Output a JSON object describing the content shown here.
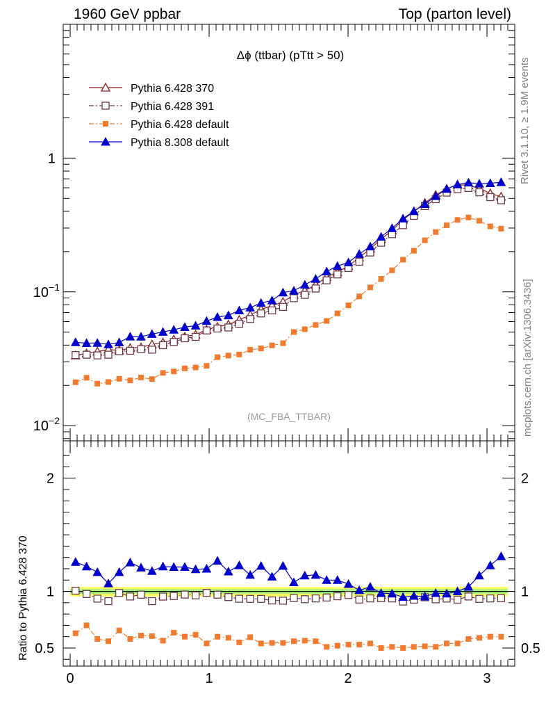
{
  "header": {
    "left": "1960 GeV ppbar",
    "right": "Top (parton level)"
  },
  "side": {
    "rivet": "Rivet 3.1.10, ≥ 1.9M events",
    "source": "mcplots.cern.ch [arXiv:1306.3436]"
  },
  "chart_data": [
    {
      "type": "line",
      "panel": "main",
      "title": "Δϕ (ttbar) (pTtt > 50)",
      "annotation": "(MC_FBA_TTBAR)",
      "xlim": [
        -0.05,
        3.2
      ],
      "ylim": [
        0.0077,
        10
      ],
      "yscale": "log",
      "yticks": [
        {
          "value": 0.01,
          "label": "10",
          "exp": "−2"
        },
        {
          "value": 0.1,
          "label": "10",
          "exp": "−1"
        },
        {
          "value": 1,
          "label": "1",
          "exp": ""
        }
      ],
      "legend_position": "top-left",
      "x": [
        0.039,
        0.118,
        0.196,
        0.275,
        0.353,
        0.432,
        0.51,
        0.589,
        0.668,
        0.746,
        0.825,
        0.903,
        0.982,
        1.06,
        1.139,
        1.217,
        1.296,
        1.374,
        1.453,
        1.532,
        1.61,
        1.689,
        1.767,
        1.846,
        1.924,
        2.003,
        2.081,
        2.16,
        2.238,
        2.317,
        2.396,
        2.474,
        2.553,
        2.631,
        2.71,
        2.788,
        2.867,
        2.945,
        3.024,
        3.102
      ],
      "series": [
        {
          "name": "Pythia 6.428 370",
          "color": "#8b1a1a",
          "marker": "open-triangle",
          "line": "solid",
          "values": [
            0.0335,
            0.0347,
            0.0358,
            0.0371,
            0.0365,
            0.038,
            0.0384,
            0.0405,
            0.0418,
            0.044,
            0.0463,
            0.0478,
            0.0522,
            0.0548,
            0.057,
            0.0617,
            0.0671,
            0.0739,
            0.079,
            0.0841,
            0.0953,
            0.102,
            0.113,
            0.129,
            0.141,
            0.156,
            0.181,
            0.21,
            0.248,
            0.288,
            0.346,
            0.399,
            0.462,
            0.53,
            0.589,
            0.632,
            0.626,
            0.594,
            0.545,
            0.515
          ]
        },
        {
          "name": "Pythia 6.428 391",
          "color": "#6b3a4a",
          "marker": "open-square",
          "line": "dashdot",
          "values": [
            0.0337,
            0.0339,
            0.0335,
            0.0339,
            0.036,
            0.0363,
            0.0373,
            0.037,
            0.0399,
            0.0422,
            0.045,
            0.0461,
            0.0515,
            0.0532,
            0.0542,
            0.0577,
            0.0627,
            0.069,
            0.0727,
            0.0772,
            0.0897,
            0.095,
            0.106,
            0.122,
            0.135,
            0.151,
            0.168,
            0.197,
            0.233,
            0.27,
            0.315,
            0.37,
            0.438,
            0.493,
            0.552,
            0.586,
            0.598,
            0.555,
            0.511,
            0.484
          ]
        },
        {
          "name": "Pythia 6.428 default",
          "color": "#f07b2e",
          "marker": "filled-square",
          "line": "dashdot",
          "values": [
            0.0211,
            0.0228,
            0.0206,
            0.0212,
            0.0224,
            0.0218,
            0.0229,
            0.0223,
            0.0248,
            0.0254,
            0.0268,
            0.0272,
            0.028,
            0.0325,
            0.0334,
            0.034,
            0.0369,
            0.0378,
            0.0398,
            0.0413,
            0.0501,
            0.0526,
            0.0566,
            0.0606,
            0.0691,
            0.0793,
            0.0925,
            0.108,
            0.125,
            0.145,
            0.174,
            0.203,
            0.243,
            0.28,
            0.315,
            0.345,
            0.36,
            0.34,
            0.309,
            0.297
          ]
        },
        {
          "name": "Pythia 8.308 default",
          "color": "#0000cc",
          "marker": "filled-triangle",
          "line": "solid",
          "values": [
            0.042,
            0.0414,
            0.0415,
            0.0405,
            0.0419,
            0.0463,
            0.0462,
            0.0484,
            0.0502,
            0.0521,
            0.0546,
            0.0559,
            0.0605,
            0.0648,
            0.0667,
            0.0726,
            0.0763,
            0.0826,
            0.0862,
            0.0989,
            0.102,
            0.113,
            0.125,
            0.142,
            0.156,
            0.166,
            0.192,
            0.218,
            0.258,
            0.299,
            0.353,
            0.401,
            0.453,
            0.519,
            0.588,
            0.636,
            0.656,
            0.643,
            0.649,
            0.66
          ]
        }
      ]
    },
    {
      "type": "line",
      "panel": "ratio",
      "ylabel": "Ratio to Pythia 6.428 370",
      "xlim": [
        -0.05,
        3.2
      ],
      "ylim": [
        0.34,
        2.33
      ],
      "xticks": [
        0,
        1,
        2,
        3
      ],
      "yticks": [
        0.5,
        1,
        2
      ],
      "reference_band": {
        "color": "#ffff66",
        "inner_color": "#9aee7a",
        "values": [
          1,
          1
        ]
      },
      "x": [
        0.039,
        0.118,
        0.196,
        0.275,
        0.353,
        0.432,
        0.51,
        0.589,
        0.668,
        0.746,
        0.825,
        0.903,
        0.982,
        1.06,
        1.139,
        1.217,
        1.296,
        1.374,
        1.453,
        1.532,
        1.61,
        1.689,
        1.767,
        1.846,
        1.924,
        2.003,
        2.081,
        2.16,
        2.238,
        2.317,
        2.396,
        2.474,
        2.553,
        2.631,
        2.71,
        2.788,
        2.867,
        2.945,
        3.024,
        3.102
      ],
      "series": [
        {
          "name": "Pythia 6.428 391",
          "color": "#6b3a4a",
          "marker": "open-square",
          "line": "dashdot",
          "values": [
            1.006,
            0.977,
            0.936,
            0.914,
            0.986,
            0.955,
            0.971,
            0.914,
            0.954,
            0.959,
            0.972,
            0.965,
            0.987,
            0.971,
            0.95,
            0.935,
            0.934,
            0.934,
            0.92,
            0.918,
            0.941,
            0.931,
            0.938,
            0.946,
            0.957,
            0.968,
            0.928,
            0.938,
            0.94,
            0.938,
            0.91,
            0.927,
            0.948,
            0.93,
            0.937,
            0.927,
            0.955,
            0.934,
            0.938,
            0.94
          ]
        },
        {
          "name": "Pythia 6.428 default",
          "color": "#f07b2e",
          "marker": "filled-square",
          "line": "dashdot",
          "values": [
            0.63,
            0.7,
            0.58,
            0.56,
            0.655,
            0.58,
            0.61,
            0.605,
            0.565,
            0.635,
            0.6,
            0.617,
            0.54,
            0.6,
            0.59,
            0.55,
            0.595,
            0.54,
            0.545,
            0.545,
            0.56,
            0.565,
            0.56,
            0.51,
            0.52,
            0.53,
            0.53,
            0.54,
            0.5,
            0.51,
            0.5,
            0.51,
            0.515,
            0.51,
            0.54,
            0.54,
            0.58,
            0.59,
            0.6,
            0.6
          ]
        },
        {
          "name": "Pythia 8.308 default",
          "color": "#0000cc",
          "marker": "filled-triangle",
          "line": "solid",
          "values": [
            1.26,
            1.22,
            1.17,
            1.07,
            1.17,
            1.255,
            1.21,
            1.18,
            1.22,
            1.215,
            1.215,
            1.195,
            1.2,
            1.27,
            1.175,
            1.23,
            1.145,
            1.225,
            1.13,
            1.225,
            1.08,
            1.14,
            1.145,
            1.1,
            1.1,
            1.065,
            1.01,
            1.04,
            0.985,
            0.98,
            0.95,
            0.96,
            0.955,
            0.985,
            0.98,
            1.0,
            1.04,
            1.14,
            1.23,
            1.31
          ]
        }
      ]
    }
  ]
}
